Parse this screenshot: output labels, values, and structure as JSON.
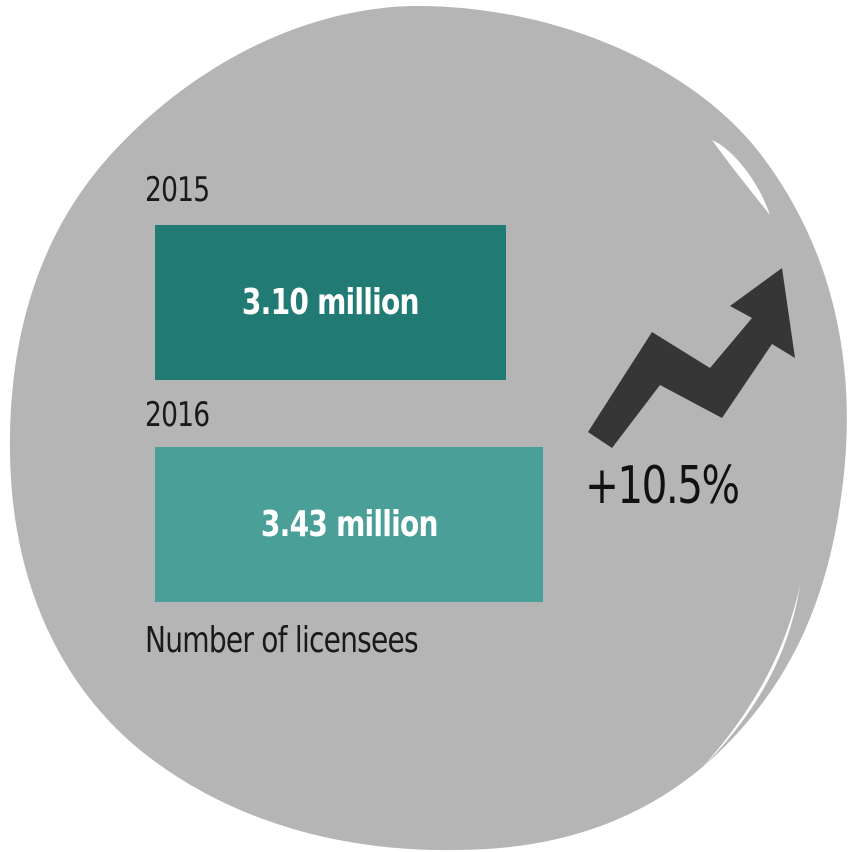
{
  "chart_data": {
    "type": "bar",
    "orientation": "horizontal",
    "categories": [
      "2015",
      "2016"
    ],
    "values": [
      3.1,
      3.43
    ],
    "value_labels": [
      "3.10 million",
      "3.43 million"
    ],
    "unit": "million",
    "xlabel": "Number of licensees",
    "growth": "+10.5%",
    "colors": [
      "#217a73",
      "#4aa098"
    ]
  },
  "colors": {
    "background_blob": "#b5b5b5",
    "arrow": "#363636",
    "text": "#1a1a1a"
  },
  "icons": {
    "trend": "zigzag-up-arrow-icon"
  }
}
